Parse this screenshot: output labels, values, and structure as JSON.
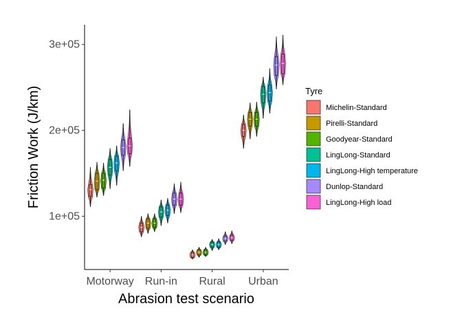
{
  "chart_data": {
    "type": "violin",
    "xlabel": "Abrasion test scenario",
    "ylabel": "Friction Work (J/km)",
    "categories": [
      "Motorway",
      "Run-in",
      "Rural",
      "Urban"
    ],
    "yticks": [
      100000,
      200000,
      300000
    ],
    "ytick_labels": [
      "1e+05",
      "2e+05",
      "3e+05"
    ],
    "ylim": [
      38000,
      323000
    ],
    "legend": {
      "title": "Tyre",
      "placement": "right"
    },
    "series": [
      {
        "name": "Michelin-Standard",
        "color": "#F8766D",
        "values": {
          "Motorway": {
            "median": 131000,
            "q1": 123000,
            "q3": 137000,
            "min": 111000,
            "max": 157000
          },
          "Run-in": {
            "median": 87000,
            "q1": 82000,
            "q3": 92000,
            "min": 76000,
            "max": 100000
          },
          "Rural": {
            "median": 55000,
            "q1": 52000,
            "q3": 58000,
            "min": 50000,
            "max": 61000
          },
          "Urban": {
            "median": 200000,
            "q1": 193000,
            "q3": 207000,
            "min": 179000,
            "max": 218000
          }
        }
      },
      {
        "name": "Pirelli-Standard",
        "color": "#C49A00",
        "values": {
          "Motorway": {
            "median": 141000,
            "q1": 131000,
            "q3": 150000,
            "min": 122000,
            "max": 163000
          },
          "Run-in": {
            "median": 92000,
            "q1": 86000,
            "q3": 97000,
            "min": 80000,
            "max": 103000
          },
          "Rural": {
            "median": 58000,
            "q1": 55000,
            "q3": 61000,
            "min": 52000,
            "max": 64000
          },
          "Urban": {
            "median": 213000,
            "q1": 205000,
            "q3": 221000,
            "min": 190000,
            "max": 232000
          }
        }
      },
      {
        "name": "Goodyear-Standard",
        "color": "#53B400",
        "values": {
          "Motorway": {
            "median": 142000,
            "q1": 133000,
            "q3": 150000,
            "min": 124000,
            "max": 162000
          },
          "Run-in": {
            "median": 92000,
            "q1": 87000,
            "q3": 97000,
            "min": 82000,
            "max": 103000
          },
          "Rural": {
            "median": 58000,
            "q1": 55000,
            "q3": 61000,
            "min": 53000,
            "max": 64000
          },
          "Urban": {
            "median": 213000,
            "q1": 205000,
            "q3": 221000,
            "min": 193000,
            "max": 233000
          }
        }
      },
      {
        "name": "LingLong-Standard",
        "color": "#00C094",
        "values": {
          "Motorway": {
            "median": 157000,
            "q1": 148000,
            "q3": 166000,
            "min": 132000,
            "max": 179000
          },
          "Run-in": {
            "median": 105000,
            "q1": 99000,
            "q3": 111000,
            "min": 89000,
            "max": 119000
          },
          "Rural": {
            "median": 67000,
            "q1": 64000,
            "q3": 70000,
            "min": 60000,
            "max": 73000
          },
          "Urban": {
            "median": 242000,
            "q1": 232000,
            "q3": 251000,
            "min": 214000,
            "max": 262000
          }
        }
      },
      {
        "name": "LingLong-High temperature",
        "color": "#00B6EB",
        "values": {
          "Motorway": {
            "median": 162000,
            "q1": 153000,
            "q3": 170000,
            "min": 136000,
            "max": 182000
          },
          "Run-in": {
            "median": 107000,
            "q1": 101000,
            "q3": 113000,
            "min": 92000,
            "max": 121000
          },
          "Rural": {
            "median": 67000,
            "q1": 64000,
            "q3": 70000,
            "min": 61000,
            "max": 74000
          },
          "Urban": {
            "median": 244000,
            "q1": 234000,
            "q3": 253000,
            "min": 220000,
            "max": 272000
          }
        }
      },
      {
        "name": "Dunlop-Standard",
        "color": "#A58AFF",
        "values": {
          "Motorway": {
            "median": 180000,
            "q1": 171000,
            "q3": 189000,
            "min": 153000,
            "max": 208000
          },
          "Run-in": {
            "median": 120000,
            "q1": 113000,
            "q3": 127000,
            "min": 103000,
            "max": 138000
          },
          "Rural": {
            "median": 74000,
            "q1": 71000,
            "q3": 77000,
            "min": 67000,
            "max": 82000
          },
          "Urban": {
            "median": 276000,
            "q1": 264000,
            "q3": 286000,
            "min": 248000,
            "max": 309000
          }
        }
      },
      {
        "name": "LingLong-High load",
        "color": "#FB61D7",
        "values": {
          "Motorway": {
            "median": 182000,
            "q1": 173000,
            "q3": 191000,
            "min": 158000,
            "max": 224000
          },
          "Run-in": {
            "median": 120000,
            "q1": 113000,
            "q3": 127000,
            "min": 104000,
            "max": 140000
          },
          "Rural": {
            "median": 75000,
            "q1": 72000,
            "q3": 78000,
            "min": 68000,
            "max": 83000
          },
          "Urban": {
            "median": 278000,
            "q1": 266000,
            "q3": 289000,
            "min": 253000,
            "max": 311000
          }
        }
      }
    ]
  }
}
